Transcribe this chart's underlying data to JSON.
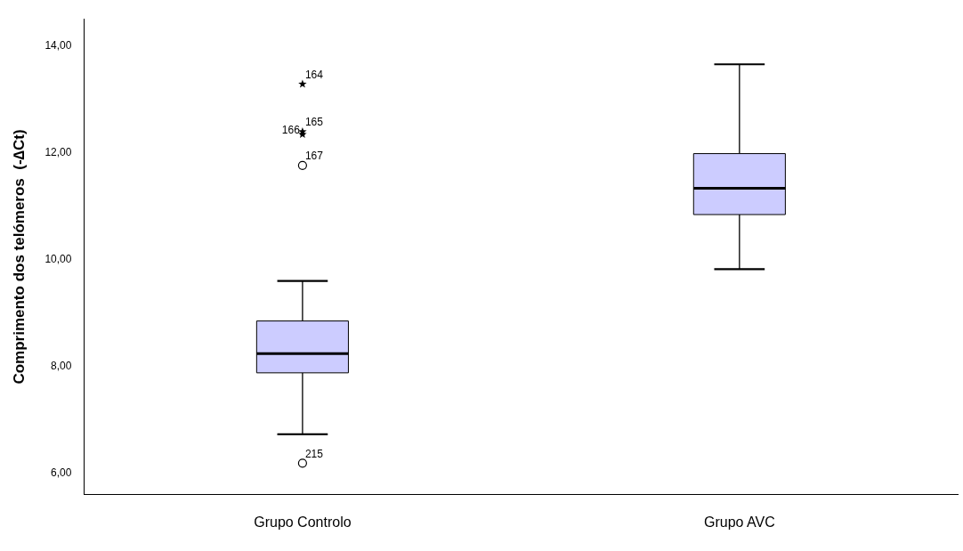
{
  "chart_data": {
    "type": "box",
    "ylabel": "Comprimento dos telómeros  (-∆Ct)",
    "categories": [
      "Grupo Controlo",
      "Grupo AVC"
    ],
    "color": "#ccccff",
    "boxes": [
      {
        "low": 6.73,
        "q1": 7.88,
        "median": 8.24,
        "q3": 8.85,
        "high": 9.6
      },
      {
        "low": 9.82,
        "q1": 10.84,
        "median": 11.33,
        "q3": 11.98,
        "high": 13.65
      }
    ],
    "series": [
      {
        "type": "scatter",
        "marker": "circle",
        "color": "#000000",
        "x": [
          "Grupo Controlo",
          "Grupo Controlo"
        ],
        "values": [
          11.76,
          6.19
        ]
      },
      {
        "type": "scatter",
        "marker": "star",
        "color": "#000000",
        "x": [
          "Grupo Controlo",
          "Grupo Controlo",
          "Grupo Controlo"
        ],
        "values": [
          13.28,
          12.39,
          12.34
        ]
      }
    ],
    "annotations": [
      {
        "text": "164",
        "x": "Grupo Controlo",
        "y": 13.28
      },
      {
        "text": "165",
        "x": "Grupo Controlo",
        "y": 12.39
      },
      {
        "text": "166",
        "x": "Grupo Controlo",
        "y": 12.34
      },
      {
        "text": "167",
        "x": "Grupo Controlo",
        "y": 11.76
      },
      {
        "text": "215",
        "x": "Grupo Controlo",
        "y": 6.19
      }
    ],
    "ylim": [
      5.6,
      14.5
    ],
    "yticks": [
      {
        "value": 6,
        "label": "6,00"
      },
      {
        "value": 8,
        "label": "8,00"
      },
      {
        "value": 10,
        "label": "10,00"
      },
      {
        "value": 12,
        "label": "12,00"
      },
      {
        "value": 14,
        "label": "14,00"
      }
    ],
    "grid": false,
    "legend": false
  }
}
